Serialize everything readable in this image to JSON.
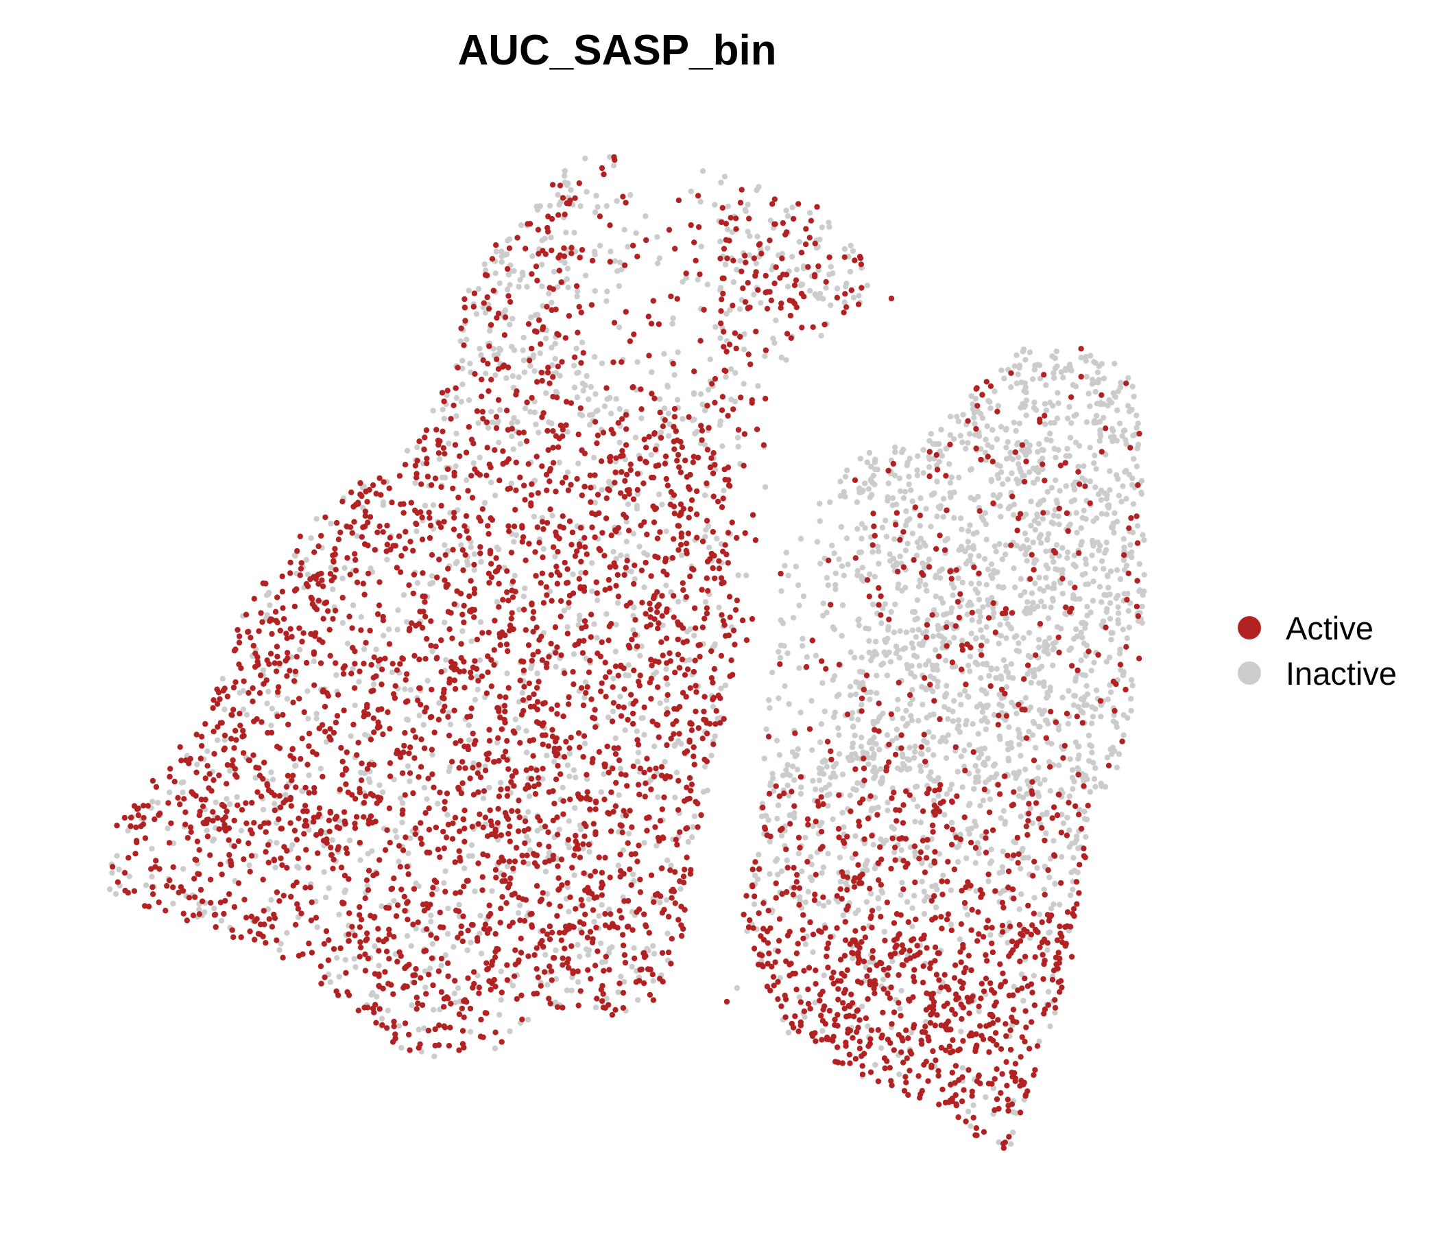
{
  "chart_data": {
    "type": "scatter",
    "title": "AUC_SASP_bin",
    "xlabel": "",
    "ylabel": "",
    "axes_visible": false,
    "grid": false,
    "legend_position": "right",
    "series": [
      {
        "name": "Active",
        "color": "#B22222"
      },
      {
        "name": "Inactive",
        "color": "#CCCCCC"
      }
    ],
    "point_count_approx": 7000,
    "point_density_note": "Active points dominate the left lobe and the bottom-right tail; Inactive points dominate the right lobe and the upper-right region"
  }
}
